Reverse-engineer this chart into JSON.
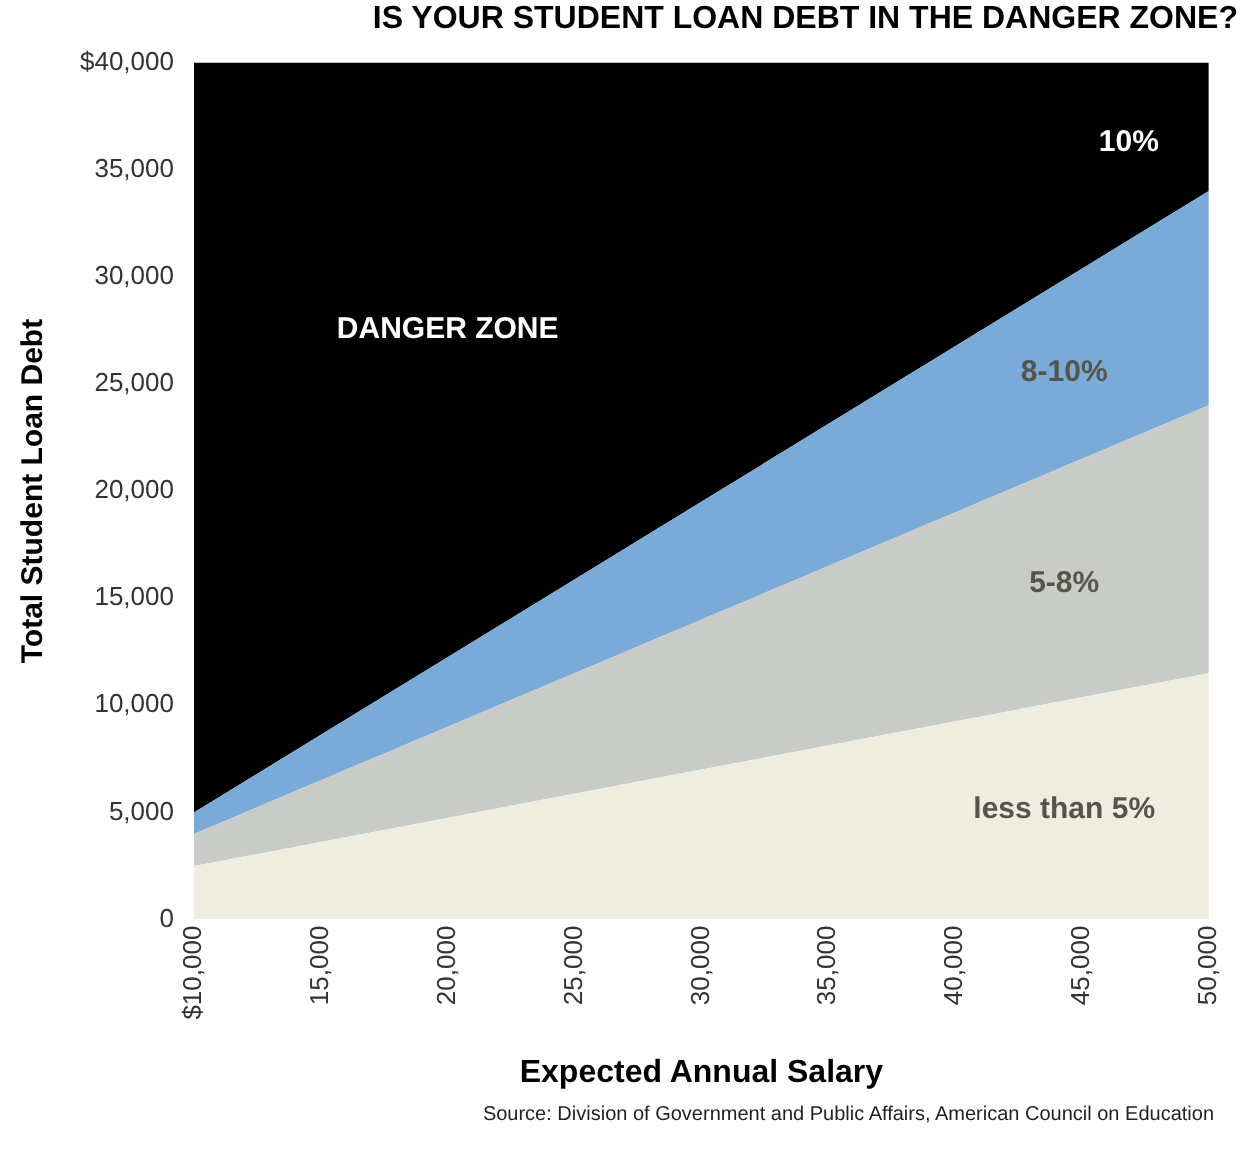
{
  "chart_data": {
    "type": "area",
    "stacked": true,
    "title": "IS YOUR STUDENT LOAN DEBT IN THE DANGER ZONE?",
    "xlabel": "Expected Annual Salary",
    "ylabel": "Total Student Loan Debt",
    "x": [
      10000,
      50000
    ],
    "series": [
      {
        "name": "less than 5%",
        "color": "#eeede0",
        "values": [
          2500,
          11500
        ]
      },
      {
        "name": "5-8%",
        "color": "#c8cbc8",
        "values": [
          1500,
          12500
        ]
      },
      {
        "name": "8-10%",
        "color": "#7aaad8",
        "values": [
          1000,
          10000
        ]
      },
      {
        "name": "DANGER ZONE",
        "color": "#000000",
        "values": [
          35000,
          6000
        ]
      }
    ],
    "xlim": [
      10000,
      50000
    ],
    "xticks": [
      {
        "value": 10000,
        "label": "$10,000"
      },
      {
        "value": 15000,
        "label": "15,000"
      },
      {
        "value": 20000,
        "label": "20,000"
      },
      {
        "value": 25000,
        "label": "25,000"
      },
      {
        "value": 30000,
        "label": "30,000"
      },
      {
        "value": 35000,
        "label": "35,000"
      },
      {
        "value": 40000,
        "label": "40,000"
      },
      {
        "value": 45000,
        "label": "45,000"
      },
      {
        "value": 50000,
        "label": "50,000"
      }
    ],
    "ylim": [
      0,
      40000
    ],
    "yticks": [
      {
        "value": 0,
        "label": "0"
      },
      {
        "value": 5000,
        "label": "5,000"
      },
      {
        "value": 10000,
        "label": "10,000"
      },
      {
        "value": 15000,
        "label": "15,000"
      },
      {
        "value": 20000,
        "label": "20,000"
      },
      {
        "value": 25000,
        "label": "25,000"
      },
      {
        "value": 30000,
        "label": "30,000"
      },
      {
        "value": 35000,
        "label": "35,000"
      },
      {
        "value": 40000,
        "label": "$40,000"
      }
    ],
    "grid": false,
    "legend": false,
    "annotations": [
      "10%",
      "Source: Division of Government and Public Affairs, American Council on Education"
    ]
  }
}
